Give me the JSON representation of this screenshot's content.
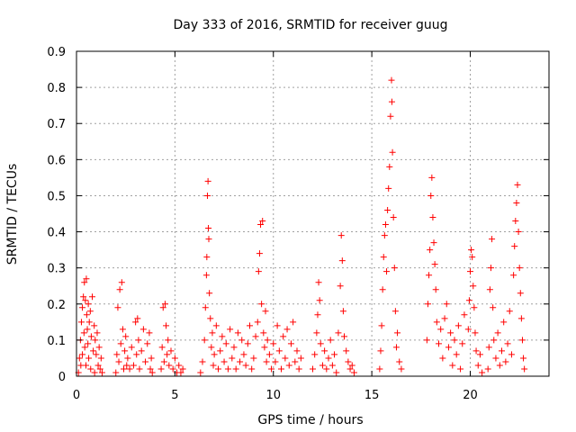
{
  "chart_data": {
    "type": "scatter",
    "title": "Day 333 of 2016, SRMTID for receiver guug",
    "xlabel": "GPS time / hours",
    "ylabel": "SRMTID / TECUs",
    "xlim": [
      0,
      24
    ],
    "ylim": [
      0,
      0.9
    ],
    "xticks": [
      0,
      5,
      10,
      15,
      20
    ],
    "yticks": [
      0,
      0.1,
      0.2,
      0.3,
      0.4,
      0.5,
      0.6,
      0.7,
      0.8,
      0.9
    ],
    "xtick_labels": [
      "0",
      "5",
      "10",
      "15",
      "20"
    ],
    "ytick_labels": [
      "0",
      "0.1",
      "0.2",
      "0.3",
      "0.4",
      "0.5",
      "0.6",
      "0.7",
      "0.8",
      "0.9"
    ],
    "grid": true,
    "marker": "+",
    "marker_color": "#ff0000",
    "series": [
      {
        "name": "SRMTID",
        "points": [
          [
            0.1,
            0.01
          ],
          [
            0.15,
            0.05
          ],
          [
            0.2,
            0.1
          ],
          [
            0.22,
            0.03
          ],
          [
            0.25,
            0.15
          ],
          [
            0.3,
            0.19
          ],
          [
            0.3,
            0.06
          ],
          [
            0.35,
            0.22
          ],
          [
            0.38,
            0.12
          ],
          [
            0.4,
            0.26
          ],
          [
            0.42,
            0.08
          ],
          [
            0.45,
            0.21
          ],
          [
            0.48,
            0.03
          ],
          [
            0.5,
            0.27
          ],
          [
            0.52,
            0.17
          ],
          [
            0.55,
            0.13
          ],
          [
            0.58,
            0.09
          ],
          [
            0.6,
            0.2
          ],
          [
            0.62,
            0.05
          ],
          [
            0.65,
            0.15
          ],
          [
            0.7,
            0.18
          ],
          [
            0.72,
            0.02
          ],
          [
            0.75,
            0.11
          ],
          [
            0.8,
            0.22
          ],
          [
            0.85,
            0.07
          ],
          [
            0.9,
            0.14
          ],
          [
            0.92,
            0.01
          ],
          [
            0.95,
            0.1
          ],
          [
            1.0,
            0.06
          ],
          [
            1.05,
            0.12
          ],
          [
            1.1,
            0.03
          ],
          [
            1.15,
            0.08
          ],
          [
            1.2,
            0.02
          ],
          [
            1.25,
            0.05
          ],
          [
            1.3,
            0.01
          ],
          [
            2.0,
            0.01
          ],
          [
            2.05,
            0.06
          ],
          [
            2.1,
            0.19
          ],
          [
            2.15,
            0.04
          ],
          [
            2.2,
            0.24
          ],
          [
            2.25,
            0.09
          ],
          [
            2.3,
            0.26
          ],
          [
            2.35,
            0.13
          ],
          [
            2.4,
            0.02
          ],
          [
            2.45,
            0.07
          ],
          [
            2.5,
            0.11
          ],
          [
            2.55,
            0.03
          ],
          [
            2.6,
            0.05
          ],
          [
            2.7,
            0.02
          ],
          [
            2.8,
            0.08
          ],
          [
            2.9,
            0.03
          ],
          [
            3.0,
            0.15
          ],
          [
            3.05,
            0.06
          ],
          [
            3.1,
            0.16
          ],
          [
            3.15,
            0.1
          ],
          [
            3.2,
            0.02
          ],
          [
            3.3,
            0.07
          ],
          [
            3.4,
            0.13
          ],
          [
            3.5,
            0.04
          ],
          [
            3.6,
            0.09
          ],
          [
            3.7,
            0.12
          ],
          [
            3.75,
            0.02
          ],
          [
            3.8,
            0.05
          ],
          [
            3.85,
            0.01
          ],
          [
            4.3,
            0.02
          ],
          [
            4.35,
            0.08
          ],
          [
            4.4,
            0.19
          ],
          [
            4.45,
            0.04
          ],
          [
            4.5,
            0.2
          ],
          [
            4.55,
            0.14
          ],
          [
            4.6,
            0.06
          ],
          [
            4.65,
            0.1
          ],
          [
            4.7,
            0.03
          ],
          [
            4.8,
            0.07
          ],
          [
            4.9,
            0.02
          ],
          [
            5.0,
            0.05
          ],
          [
            5.1,
            0.01
          ],
          [
            5.2,
            0.03
          ],
          [
            5.3,
            0.01
          ],
          [
            5.4,
            0.02
          ],
          [
            6.3,
            0.01
          ],
          [
            6.4,
            0.04
          ],
          [
            6.5,
            0.1
          ],
          [
            6.55,
            0.19
          ],
          [
            6.6,
            0.28
          ],
          [
            6.62,
            0.33
          ],
          [
            6.65,
            0.5
          ],
          [
            6.68,
            0.54
          ],
          [
            6.7,
            0.41
          ],
          [
            6.72,
            0.38
          ],
          [
            6.75,
            0.23
          ],
          [
            6.8,
            0.16
          ],
          [
            6.85,
            0.08
          ],
          [
            6.9,
            0.12
          ],
          [
            6.95,
            0.03
          ],
          [
            7.0,
            0.06
          ],
          [
            7.1,
            0.14
          ],
          [
            7.2,
            0.02
          ],
          [
            7.3,
            0.07
          ],
          [
            7.4,
            0.11
          ],
          [
            7.5,
            0.04
          ],
          [
            7.6,
            0.09
          ],
          [
            7.7,
            0.02
          ],
          [
            7.8,
            0.13
          ],
          [
            7.9,
            0.05
          ],
          [
            8.0,
            0.08
          ],
          [
            8.1,
            0.02
          ],
          [
            8.2,
            0.12
          ],
          [
            8.3,
            0.04
          ],
          [
            8.4,
            0.1
          ],
          [
            8.5,
            0.06
          ],
          [
            8.6,
            0.03
          ],
          [
            8.7,
            0.09
          ],
          [
            8.8,
            0.14
          ],
          [
            8.9,
            0.02
          ],
          [
            9.0,
            0.05
          ],
          [
            9.1,
            0.11
          ],
          [
            9.2,
            0.15
          ],
          [
            9.25,
            0.29
          ],
          [
            9.3,
            0.34
          ],
          [
            9.35,
            0.42
          ],
          [
            9.4,
            0.2
          ],
          [
            9.45,
            0.43
          ],
          [
            9.5,
            0.12
          ],
          [
            9.55,
            0.08
          ],
          [
            9.6,
            0.18
          ],
          [
            9.65,
            0.04
          ],
          [
            9.7,
            0.1
          ],
          [
            9.8,
            0.06
          ],
          [
            9.9,
            0.02
          ],
          [
            10.0,
            0.09
          ],
          [
            10.1,
            0.04
          ],
          [
            10.2,
            0.14
          ],
          [
            10.3,
            0.07
          ],
          [
            10.4,
            0.02
          ],
          [
            10.5,
            0.11
          ],
          [
            10.6,
            0.05
          ],
          [
            10.7,
            0.13
          ],
          [
            10.8,
            0.03
          ],
          [
            10.9,
            0.09
          ],
          [
            11.0,
            0.15
          ],
          [
            11.1,
            0.04
          ],
          [
            11.2,
            0.07
          ],
          [
            11.3,
            0.02
          ],
          [
            11.4,
            0.05
          ],
          [
            12.0,
            0.02
          ],
          [
            12.1,
            0.06
          ],
          [
            12.2,
            0.12
          ],
          [
            12.25,
            0.17
          ],
          [
            12.3,
            0.26
          ],
          [
            12.35,
            0.21
          ],
          [
            12.4,
            0.09
          ],
          [
            12.5,
            0.03
          ],
          [
            12.6,
            0.07
          ],
          [
            12.7,
            0.02
          ],
          [
            12.8,
            0.05
          ],
          [
            12.9,
            0.1
          ],
          [
            13.0,
            0.03
          ],
          [
            13.1,
            0.06
          ],
          [
            13.2,
            0.01
          ],
          [
            13.3,
            0.12
          ],
          [
            13.4,
            0.25
          ],
          [
            13.45,
            0.39
          ],
          [
            13.5,
            0.32
          ],
          [
            13.55,
            0.18
          ],
          [
            13.6,
            0.11
          ],
          [
            13.7,
            0.07
          ],
          [
            13.8,
            0.04
          ],
          [
            13.9,
            0.02
          ],
          [
            14.0,
            0.03
          ],
          [
            14.1,
            0.01
          ],
          [
            15.4,
            0.02
          ],
          [
            15.45,
            0.07
          ],
          [
            15.5,
            0.14
          ],
          [
            15.55,
            0.24
          ],
          [
            15.6,
            0.33
          ],
          [
            15.65,
            0.39
          ],
          [
            15.7,
            0.42
          ],
          [
            15.75,
            0.29
          ],
          [
            15.8,
            0.46
          ],
          [
            15.85,
            0.52
          ],
          [
            15.9,
            0.58
          ],
          [
            15.95,
            0.72
          ],
          [
            16.0,
            0.82
          ],
          [
            16.02,
            0.76
          ],
          [
            16.05,
            0.62
          ],
          [
            16.1,
            0.44
          ],
          [
            16.15,
            0.3
          ],
          [
            16.2,
            0.18
          ],
          [
            16.25,
            0.08
          ],
          [
            16.3,
            0.12
          ],
          [
            16.4,
            0.04
          ],
          [
            16.5,
            0.02
          ],
          [
            17.8,
            0.1
          ],
          [
            17.85,
            0.2
          ],
          [
            17.9,
            0.28
          ],
          [
            17.95,
            0.35
          ],
          [
            18.0,
            0.5
          ],
          [
            18.05,
            0.55
          ],
          [
            18.1,
            0.44
          ],
          [
            18.15,
            0.37
          ],
          [
            18.2,
            0.31
          ],
          [
            18.25,
            0.24
          ],
          [
            18.3,
            0.15
          ],
          [
            18.4,
            0.09
          ],
          [
            18.5,
            0.13
          ],
          [
            18.6,
            0.05
          ],
          [
            18.7,
            0.16
          ],
          [
            18.8,
            0.2
          ],
          [
            18.9,
            0.08
          ],
          [
            19.0,
            0.12
          ],
          [
            19.1,
            0.03
          ],
          [
            19.2,
            0.1
          ],
          [
            19.3,
            0.06
          ],
          [
            19.4,
            0.14
          ],
          [
            19.5,
            0.02
          ],
          [
            19.6,
            0.09
          ],
          [
            19.7,
            0.17
          ],
          [
            19.9,
            0.13
          ],
          [
            19.95,
            0.21
          ],
          [
            20.0,
            0.29
          ],
          [
            20.05,
            0.35
          ],
          [
            20.1,
            0.33
          ],
          [
            20.15,
            0.25
          ],
          [
            20.2,
            0.19
          ],
          [
            20.25,
            0.12
          ],
          [
            20.3,
            0.07
          ],
          [
            20.4,
            0.03
          ],
          [
            20.5,
            0.06
          ],
          [
            20.6,
            0.01
          ],
          [
            20.9,
            0.02
          ],
          [
            20.95,
            0.08
          ],
          [
            21.0,
            0.24
          ],
          [
            21.05,
            0.3
          ],
          [
            21.1,
            0.38
          ],
          [
            21.15,
            0.19
          ],
          [
            21.2,
            0.1
          ],
          [
            21.3,
            0.05
          ],
          [
            21.4,
            0.12
          ],
          [
            21.5,
            0.03
          ],
          [
            21.6,
            0.07
          ],
          [
            21.7,
            0.15
          ],
          [
            21.8,
            0.04
          ],
          [
            21.9,
            0.09
          ],
          [
            22.0,
            0.18
          ],
          [
            22.1,
            0.06
          ],
          [
            22.2,
            0.28
          ],
          [
            22.25,
            0.36
          ],
          [
            22.3,
            0.43
          ],
          [
            22.35,
            0.48
          ],
          [
            22.4,
            0.53
          ],
          [
            22.45,
            0.4
          ],
          [
            22.5,
            0.3
          ],
          [
            22.55,
            0.23
          ],
          [
            22.6,
            0.16
          ],
          [
            22.65,
            0.1
          ],
          [
            22.7,
            0.05
          ],
          [
            22.75,
            0.02
          ]
        ]
      }
    ]
  }
}
